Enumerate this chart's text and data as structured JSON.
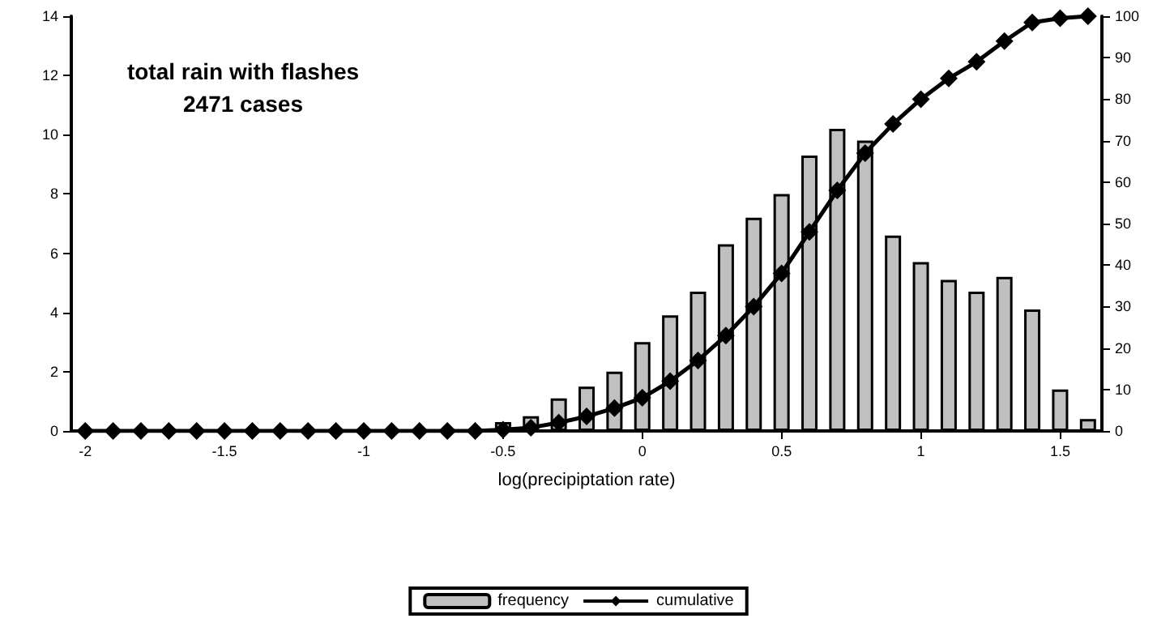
{
  "chart_data": {
    "type": "bar",
    "annotations": [
      "total rain with flashes\n2471 cases"
    ],
    "xlabel": "log(precipiptation rate)",
    "x": [
      -2,
      -1.9,
      -1.8,
      -1.7,
      -1.6,
      -1.5,
      -1.4,
      -1.3,
      -1.2,
      -1.1,
      -1,
      -0.9,
      -0.8,
      -0.7,
      -0.6,
      -0.5,
      -0.4,
      -0.3,
      -0.2,
      -0.1,
      0,
      0.1,
      0.2,
      0.3,
      0.4,
      0.5,
      0.6,
      0.7,
      0.8,
      0.9,
      1,
      1.1,
      1.2,
      1.3,
      1.4,
      1.5,
      1.6
    ],
    "series": [
      {
        "name": "frequency",
        "color": "#c0c0c0",
        "values": [
          null,
          null,
          null,
          null,
          null,
          null,
          null,
          null,
          null,
          null,
          null,
          null,
          null,
          null,
          null,
          0.3,
          0.5,
          1.1,
          1.5,
          2,
          3,
          3.9,
          4.7,
          6.3,
          7.2,
          8,
          9.3,
          10.2,
          9.8,
          6.6,
          5.7,
          5.1,
          4.7,
          5.2,
          4.1,
          1.4,
          0.4
        ]
      },
      {
        "name": "cumulative",
        "type": "line",
        "axis": "y2",
        "color": "#000000",
        "marker": "diamond",
        "values": [
          0,
          0,
          0,
          0,
          0,
          0,
          0,
          0,
          0,
          0,
          0,
          0,
          0,
          0,
          0,
          0.3,
          0.8,
          2,
          3.5,
          5.5,
          8,
          12,
          17,
          23,
          30,
          38,
          48,
          58,
          67,
          74,
          80,
          85,
          89,
          94,
          98.5,
          99.5,
          100
        ]
      }
    ],
    "xlim": [
      -2.05,
      1.65
    ],
    "xticks": [
      -2,
      -1.5,
      -1,
      -0.5,
      0,
      0.5,
      1,
      1.5
    ],
    "ylim": [
      0,
      14
    ],
    "yticks": [
      0,
      2,
      4,
      6,
      8,
      10,
      12,
      14
    ],
    "y2lim": [
      0,
      100
    ],
    "y2ticks": [
      0,
      10,
      20,
      30,
      40,
      50,
      60,
      70,
      80,
      90,
      100
    ],
    "legend": "bottom"
  }
}
